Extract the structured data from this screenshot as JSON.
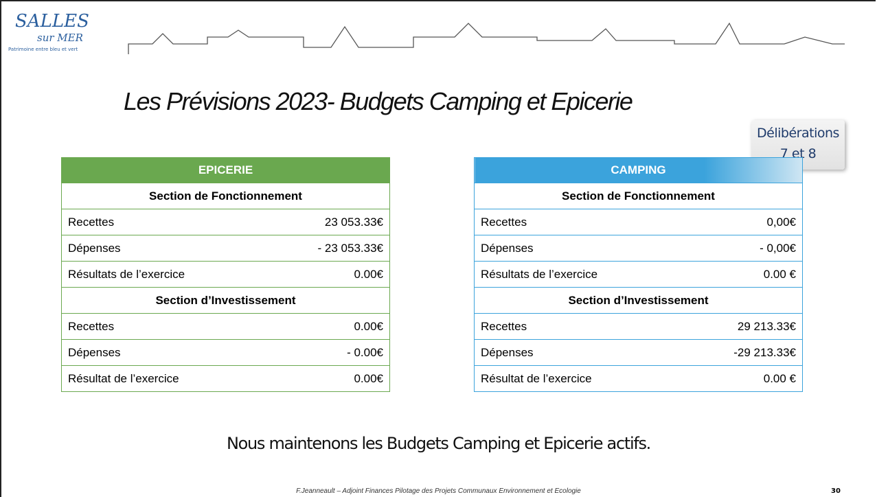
{
  "header": {
    "logo": {
      "name": "SALLES",
      "sub": "sur MER",
      "tagline": "Patrimoine entre bleu et vert"
    }
  },
  "title": "Les Prévisions 2023- Budgets Camping et Epicerie",
  "badge": {
    "line1": "Délibérations",
    "line2": "7 et 8"
  },
  "tables": [
    {
      "title": "EPICERIE",
      "color": "#6aa84f",
      "sections": [
        {
          "heading": "Section de Fonctionnement",
          "rows": [
            [
              "Recettes",
              "23 053.33€"
            ],
            [
              "Dépenses",
              "- 23 053.33€"
            ],
            [
              "Résultats de l’exercice",
              "0.00€"
            ]
          ]
        },
        {
          "heading": "Section d’Investissement",
          "rows": [
            [
              "Recettes",
              "0.00€"
            ],
            [
              "Dépenses",
              "- 0.00€"
            ],
            [
              "Résultat de l’exercice",
              "0.00€"
            ]
          ]
        }
      ]
    },
    {
      "title": "CAMPING",
      "color": "#3ba3dc",
      "sections": [
        {
          "heading": "Section de Fonctionnement",
          "rows": [
            [
              "Recettes",
              "0,00€"
            ],
            [
              "Dépenses",
              "- 0,00€"
            ],
            [
              "Résultats de l’exercice",
              "0.00 €"
            ]
          ]
        },
        {
          "heading": "Section d’Investissement",
          "rows": [
            [
              "Recettes",
              "29 213.33€"
            ],
            [
              "Dépenses",
              "-29 213.33€"
            ],
            [
              "Résultat de l’exercice",
              "0.00 €"
            ]
          ]
        }
      ]
    }
  ],
  "message": "Nous maintenons les Budgets Camping et Epicerie actifs.",
  "footer": {
    "author": "F.Jeanneault – Adjoint Finances Pilotage des Projets Communaux Environnement et Ecologie",
    "page": "30"
  }
}
